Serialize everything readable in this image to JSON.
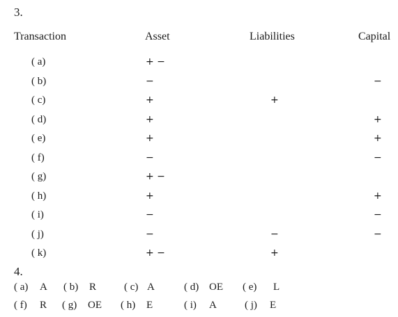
{
  "section3_label": "3.",
  "headers": {
    "transaction": "Transaction",
    "asset": "Asset",
    "liabilities": "Liabilities",
    "capital": "Capital"
  },
  "rows": [
    {
      "t": "( a)",
      "asset": "+  −",
      "liab": "",
      "cap": ""
    },
    {
      "t": "( b)",
      "asset": "−",
      "liab": "",
      "cap": "−"
    },
    {
      "t": "( c)",
      "asset": "+",
      "liab": "+",
      "cap": ""
    },
    {
      "t": "( d)",
      "asset": "+",
      "liab": "",
      "cap": "+"
    },
    {
      "t": "( e)",
      "asset": "+",
      "liab": "",
      "cap": "+"
    },
    {
      "t": "( f)",
      "asset": "−",
      "liab": "",
      "cap": "−"
    },
    {
      "t": "( g)",
      "asset": "+  −",
      "liab": "",
      "cap": ""
    },
    {
      "t": "( h)",
      "asset": "+",
      "liab": "",
      "cap": "+"
    },
    {
      "t": "( i)",
      "asset": "−",
      "liab": "",
      "cap": "−"
    },
    {
      "t": "( j)",
      "asset": "−",
      "liab": "−",
      "cap": "−"
    },
    {
      "t": "( k)",
      "asset": "+  −",
      "liab": "+",
      "cap": ""
    }
  ],
  "section4_label": "4.",
  "answers_line1": [
    {
      "label": "( a)",
      "value": "A"
    },
    {
      "label": "( b)",
      "value": "R"
    },
    {
      "label": "( c)",
      "value": "A"
    },
    {
      "label": "( d)",
      "value": "OE"
    },
    {
      "label": "( e)",
      "value": "L"
    }
  ],
  "answers_line2": [
    {
      "label": "( f)",
      "value": "R"
    },
    {
      "label": "( g)",
      "value": "OE"
    },
    {
      "label": "( h)",
      "value": "E"
    },
    {
      "label": "( i)",
      "value": "A"
    },
    {
      "label": "( j)",
      "value": "E"
    }
  ]
}
